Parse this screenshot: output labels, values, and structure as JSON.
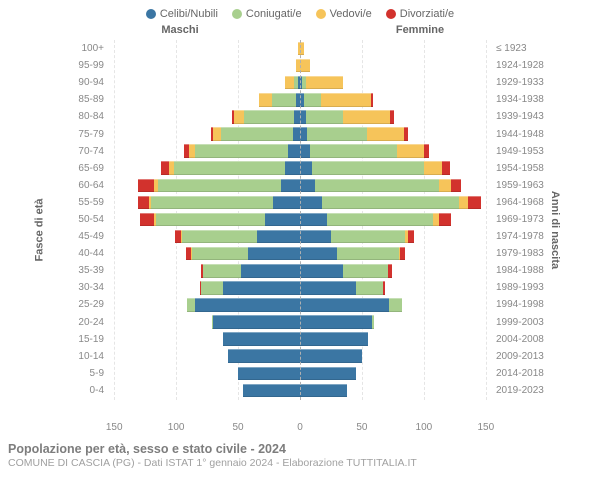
{
  "legend": [
    {
      "label": "Celibi/Nubili",
      "color": "#3b76a3"
    },
    {
      "label": "Coniugati/e",
      "color": "#a8cf8e"
    },
    {
      "label": "Vedovi/e",
      "color": "#f6c45a"
    },
    {
      "label": "Divorziati/e",
      "color": "#d2322d"
    }
  ],
  "headers": {
    "male": "Maschi",
    "female": "Femmine"
  },
  "axis": {
    "left": "Fasce di età",
    "right": "Anni di nascita"
  },
  "x_ticks": [
    150,
    100,
    50,
    0,
    50,
    100,
    150
  ],
  "x_max": 155,
  "colors": {
    "single": "#3b76a3",
    "married": "#a8cf8e",
    "widowed": "#f6c45a",
    "divorced": "#d2322d",
    "bg": "#ffffff",
    "text": "#888888"
  },
  "footer": {
    "title": "Popolazione per età, sesso e stato civile - 2024",
    "sub": "COMUNE DI CASCIA (PG) - Dati ISTAT 1° gennaio 2024 - Elaborazione TUTTITALIA.IT"
  },
  "rows": [
    {
      "age": "100+",
      "birth": "≤ 1923",
      "m": [
        0,
        0,
        2,
        0
      ],
      "f": [
        0,
        0,
        3,
        0
      ]
    },
    {
      "age": "95-99",
      "birth": "1924-1928",
      "m": [
        0,
        0,
        3,
        0
      ],
      "f": [
        0,
        0,
        8,
        0
      ]
    },
    {
      "age": "90-94",
      "birth": "1929-1933",
      "m": [
        2,
        3,
        7,
        0
      ],
      "f": [
        2,
        3,
        30,
        0
      ]
    },
    {
      "age": "85-89",
      "birth": "1934-1938",
      "m": [
        3,
        20,
        10,
        0
      ],
      "f": [
        3,
        14,
        40,
        2
      ]
    },
    {
      "age": "80-84",
      "birth": "1939-1943",
      "m": [
        5,
        40,
        8,
        2
      ],
      "f": [
        5,
        30,
        38,
        3
      ]
    },
    {
      "age": "75-79",
      "birth": "1944-1948",
      "m": [
        6,
        58,
        6,
        2
      ],
      "f": [
        6,
        48,
        30,
        3
      ]
    },
    {
      "age": "70-74",
      "birth": "1949-1953",
      "m": [
        10,
        75,
        5,
        4
      ],
      "f": [
        8,
        70,
        22,
        4
      ]
    },
    {
      "age": "65-69",
      "birth": "1954-1958",
      "m": [
        12,
        90,
        4,
        6
      ],
      "f": [
        10,
        90,
        15,
        6
      ]
    },
    {
      "age": "60-64",
      "birth": "1959-1963",
      "m": [
        15,
        100,
        3,
        13
      ],
      "f": [
        12,
        100,
        10,
        8
      ]
    },
    {
      "age": "55-59",
      "birth": "1964-1968",
      "m": [
        22,
        98,
        2,
        9
      ],
      "f": [
        18,
        110,
        8,
        10
      ]
    },
    {
      "age": "50-54",
      "birth": "1969-1973",
      "m": [
        28,
        88,
        2,
        11
      ],
      "f": [
        22,
        85,
        5,
        10
      ]
    },
    {
      "age": "45-49",
      "birth": "1974-1978",
      "m": [
        35,
        60,
        1,
        5
      ],
      "f": [
        25,
        60,
        2,
        5
      ]
    },
    {
      "age": "40-44",
      "birth": "1979-1983",
      "m": [
        42,
        45,
        1,
        4
      ],
      "f": [
        30,
        50,
        1,
        4
      ]
    },
    {
      "age": "35-39",
      "birth": "1984-1988",
      "m": [
        48,
        30,
        0,
        2
      ],
      "f": [
        35,
        36,
        0,
        3
      ]
    },
    {
      "age": "30-34",
      "birth": "1989-1993",
      "m": [
        62,
        18,
        0,
        1
      ],
      "f": [
        45,
        22,
        0,
        2
      ]
    },
    {
      "age": "25-29",
      "birth": "1994-1998",
      "m": [
        85,
        6,
        0,
        0
      ],
      "f": [
        72,
        10,
        0,
        0
      ]
    },
    {
      "age": "20-24",
      "birth": "1999-2003",
      "m": [
        70,
        1,
        0,
        0
      ],
      "f": [
        58,
        2,
        0,
        0
      ]
    },
    {
      "age": "15-19",
      "birth": "2004-2008",
      "m": [
        62,
        0,
        0,
        0
      ],
      "f": [
        55,
        0,
        0,
        0
      ]
    },
    {
      "age": "10-14",
      "birth": "2009-2013",
      "m": [
        58,
        0,
        0,
        0
      ],
      "f": [
        50,
        0,
        0,
        0
      ]
    },
    {
      "age": "5-9",
      "birth": "2014-2018",
      "m": [
        50,
        0,
        0,
        0
      ],
      "f": [
        45,
        0,
        0,
        0
      ]
    },
    {
      "age": "0-4",
      "birth": "2019-2023",
      "m": [
        46,
        0,
        0,
        0
      ],
      "f": [
        38,
        0,
        0,
        0
      ]
    }
  ]
}
